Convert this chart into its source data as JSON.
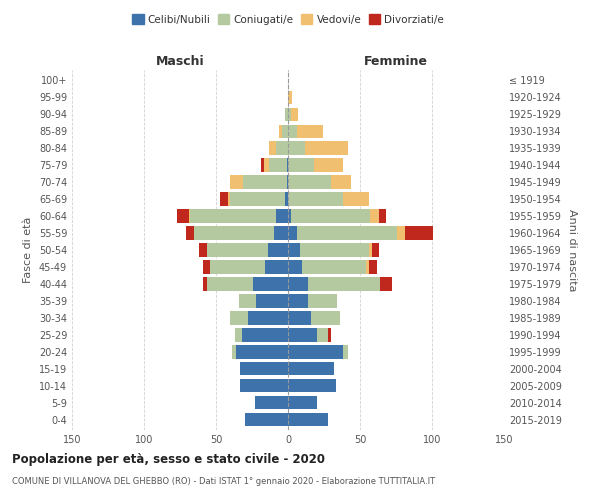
{
  "age_groups": [
    "0-4",
    "5-9",
    "10-14",
    "15-19",
    "20-24",
    "25-29",
    "30-34",
    "35-39",
    "40-44",
    "45-49",
    "50-54",
    "55-59",
    "60-64",
    "65-69",
    "70-74",
    "75-79",
    "80-84",
    "85-89",
    "90-94",
    "95-99",
    "100+"
  ],
  "birth_years": [
    "2015-2019",
    "2010-2014",
    "2005-2009",
    "2000-2004",
    "1995-1999",
    "1990-1994",
    "1985-1989",
    "1980-1984",
    "1975-1979",
    "1970-1974",
    "1965-1969",
    "1960-1964",
    "1955-1959",
    "1950-1954",
    "1945-1949",
    "1940-1944",
    "1935-1939",
    "1930-1934",
    "1925-1929",
    "1920-1924",
    "≤ 1919"
  ],
  "maschi": {
    "celibi": [
      30,
      23,
      33,
      33,
      36,
      32,
      28,
      22,
      24,
      16,
      14,
      10,
      8,
      2,
      1,
      1,
      0,
      0,
      0,
      0,
      0
    ],
    "coniugati": [
      0,
      0,
      0,
      0,
      3,
      5,
      12,
      12,
      32,
      38,
      42,
      55,
      60,
      38,
      30,
      12,
      8,
      4,
      2,
      0,
      0
    ],
    "vedovi": [
      0,
      0,
      0,
      0,
      0,
      0,
      0,
      0,
      0,
      0,
      0,
      0,
      1,
      2,
      9,
      4,
      5,
      2,
      0,
      0,
      0
    ],
    "divorziati": [
      0,
      0,
      0,
      0,
      0,
      0,
      0,
      0,
      3,
      5,
      6,
      6,
      8,
      5,
      0,
      2,
      0,
      0,
      0,
      0,
      0
    ]
  },
  "femmine": {
    "nubili": [
      28,
      20,
      33,
      32,
      38,
      20,
      16,
      14,
      14,
      10,
      8,
      6,
      2,
      0,
      0,
      0,
      0,
      0,
      0,
      0,
      0
    ],
    "coniugate": [
      0,
      0,
      0,
      0,
      4,
      8,
      20,
      20,
      50,
      44,
      48,
      70,
      55,
      38,
      30,
      18,
      12,
      6,
      2,
      0,
      0
    ],
    "vedove": [
      0,
      0,
      0,
      0,
      0,
      0,
      0,
      0,
      0,
      2,
      2,
      5,
      6,
      18,
      14,
      20,
      30,
      18,
      5,
      3,
      0
    ],
    "divorziate": [
      0,
      0,
      0,
      0,
      0,
      2,
      0,
      0,
      8,
      6,
      5,
      20,
      5,
      0,
      0,
      0,
      0,
      0,
      0,
      0,
      0
    ]
  },
  "colors": {
    "celibi": "#3d72aa",
    "coniugati": "#b5c9a0",
    "vedovi": "#f0c070",
    "divorziati": "#c0281e"
  },
  "title": "Popolazione per età, sesso e stato civile - 2020",
  "subtitle": "COMUNE DI VILLANOVA DEL GHEBBO (RO) - Dati ISTAT 1° gennaio 2020 - Elaborazione TUTTITALIA.IT",
  "label_maschi": "Maschi",
  "label_femmine": "Femmine",
  "ylabel_left": "Fasce di età",
  "ylabel_right": "Anni di nascita",
  "xlim": 150,
  "background_color": "#ffffff",
  "grid_color": "#cccccc",
  "legend_labels": [
    "Celibi/Nubili",
    "Coniugati/e",
    "Vedovi/e",
    "Divorziati/e"
  ]
}
